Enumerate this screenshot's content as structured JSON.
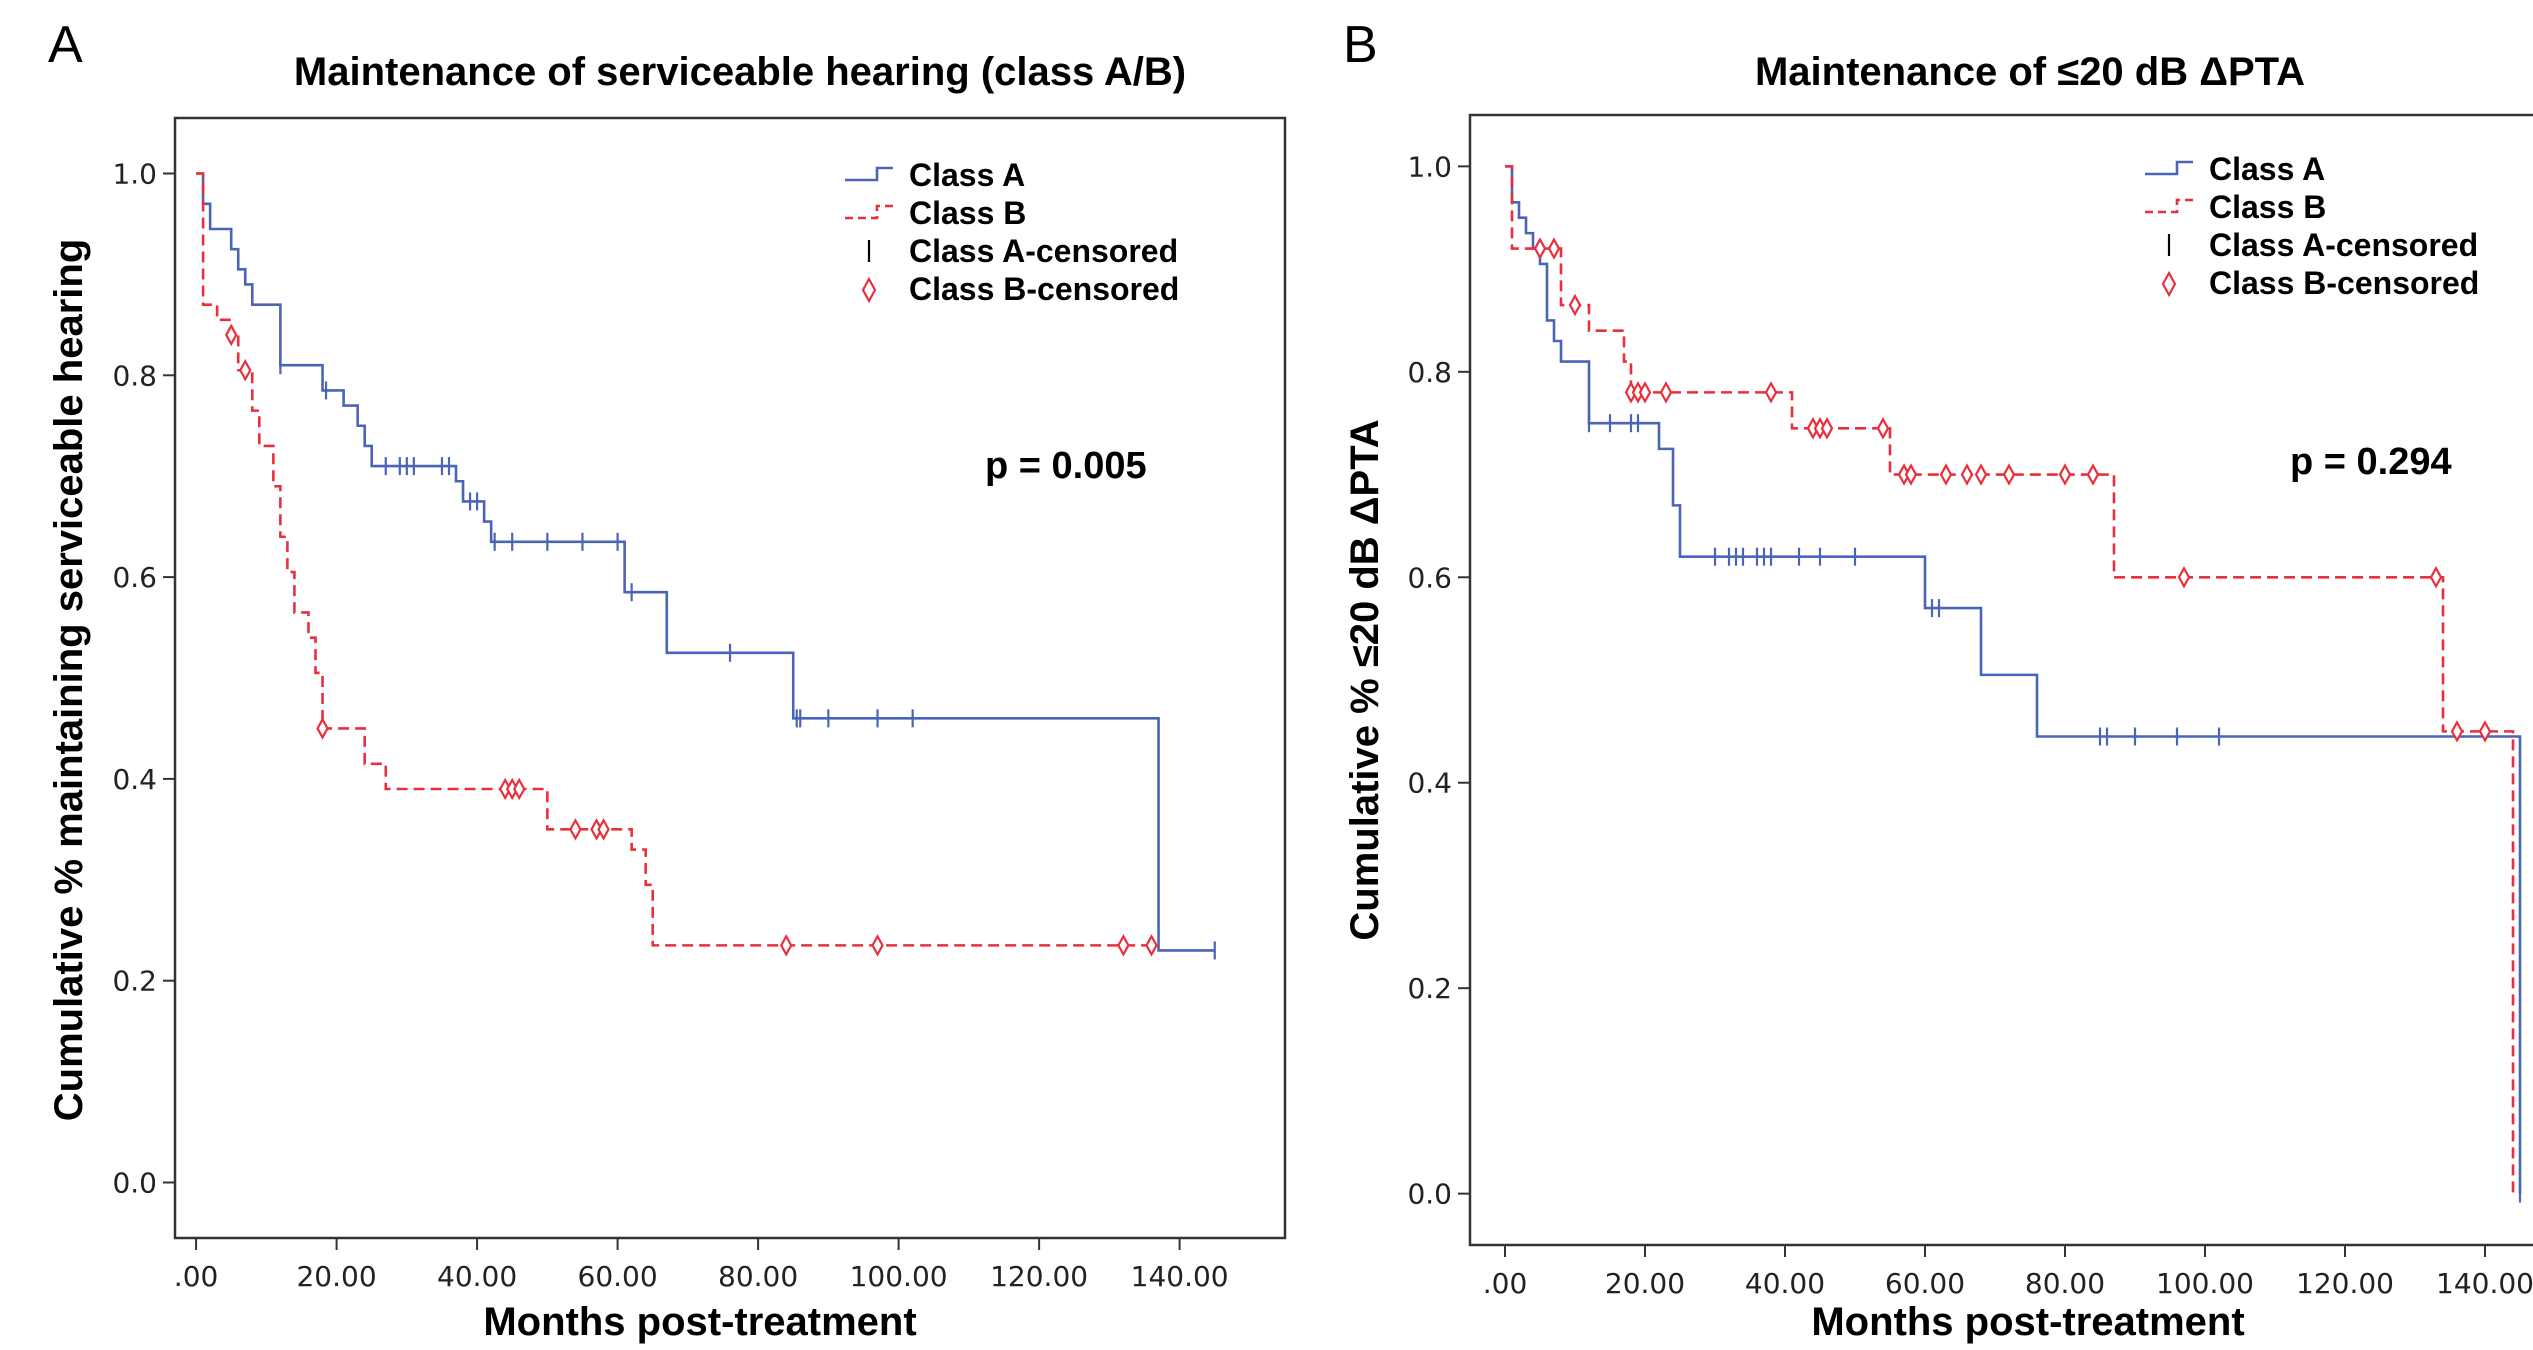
{
  "chart_data": [
    {
      "type": "line",
      "panel": "A",
      "title": "Maintenance of serviceable hearing (class A/B)",
      "xlabel": "Months post-treatment",
      "ylabel": "Cumulative % maintaining serviceable hearing",
      "xlim": [
        -3,
        155
      ],
      "ylim": [
        -0.055,
        1.055
      ],
      "x_ticks": [
        0,
        20,
        40,
        60,
        80,
        100,
        120,
        140
      ],
      "x_tick_labels": [
        ".00",
        "20.00",
        "40.00",
        "60.00",
        "80.00",
        "100.00",
        "120.00",
        "140.00"
      ],
      "y_ticks": [
        0,
        0.2,
        0.4,
        0.6,
        0.8,
        1.0
      ],
      "y_tick_labels": [
        "0.0",
        "0.2",
        "0.4",
        "0.6",
        "0.8",
        "1.0"
      ],
      "annotation": "p = 0.005",
      "legend_position": "top-right",
      "legend": [
        "Class A",
        "Class B",
        "Class A-censored",
        "Class B-censored"
      ],
      "series": [
        {
          "name": "Class A",
          "color": "#4a64b8",
          "dash": "solid",
          "steps": [
            [
              0,
              1.0
            ],
            [
              1,
              0.97
            ],
            [
              2,
              0.945
            ],
            [
              5,
              0.925
            ],
            [
              6,
              0.905
            ],
            [
              7,
              0.89
            ],
            [
              8,
              0.87
            ],
            [
              12,
              0.81
            ],
            [
              18,
              0.785
            ],
            [
              21,
              0.77
            ],
            [
              23,
              0.75
            ],
            [
              24,
              0.73
            ],
            [
              25,
              0.71
            ],
            [
              37,
              0.695
            ],
            [
              38,
              0.675
            ],
            [
              41,
              0.655
            ],
            [
              42,
              0.635
            ],
            [
              61,
              0.585
            ],
            [
              67,
              0.525
            ],
            [
              85,
              0.46
            ],
            [
              137,
              0.46
            ],
            [
              137,
              0.23
            ],
            [
              145,
              0.23
            ]
          ],
          "censored": [
            12,
            18.5,
            27,
            29,
            30,
            31,
            35,
            36,
            39,
            40,
            42.5,
            45,
            50,
            55,
            60,
            62,
            76,
            85.5,
            86,
            90,
            97,
            102,
            145
          ]
        },
        {
          "name": "Class B",
          "color": "#e8303c",
          "dash": "dashed",
          "steps": [
            [
              0,
              1.0
            ],
            [
              1,
              0.87
            ],
            [
              3,
              0.855
            ],
            [
              5,
              0.84
            ],
            [
              6,
              0.805
            ],
            [
              8,
              0.765
            ],
            [
              9,
              0.73
            ],
            [
              11,
              0.69
            ],
            [
              12,
              0.64
            ],
            [
              13,
              0.605
            ],
            [
              14,
              0.565
            ],
            [
              16,
              0.54
            ],
            [
              17,
              0.505
            ],
            [
              18,
              0.45
            ],
            [
              24,
              0.415
            ],
            [
              27,
              0.39
            ],
            [
              48,
              0.39
            ],
            [
              50,
              0.35
            ],
            [
              62,
              0.33
            ],
            [
              64,
              0.295
            ],
            [
              65,
              0.235
            ],
            [
              137,
              0.235
            ]
          ],
          "censored": [
            5,
            7,
            18,
            44,
            45,
            46,
            54,
            57,
            58,
            84,
            97,
            132,
            136
          ]
        }
      ]
    },
    {
      "type": "line",
      "panel": "B",
      "title": "Maintenance of ≤20 dB ΔPTA",
      "xlabel": "Months post-treatment",
      "ylabel": "Cumulative % ≤20 dB ΔPTA",
      "xlim": [
        -5,
        150
      ],
      "ylim": [
        -0.05,
        1.05
      ],
      "x_ticks": [
        0,
        20,
        40,
        60,
        80,
        100,
        120,
        140
      ],
      "x_tick_labels": [
        ".00",
        "20.00",
        "40.00",
        "60.00",
        "80.00",
        "100.00",
        "120.00",
        "140.00"
      ],
      "y_ticks": [
        0,
        0.2,
        0.4,
        0.6,
        0.8,
        1.0
      ],
      "y_tick_labels": [
        "0.0",
        "0.2",
        "0.4",
        "0.6",
        "0.8",
        "1.0"
      ],
      "annotation": "p = 0.294",
      "legend_position": "top-right",
      "legend": [
        "Class A",
        "Class B",
        "Class A-censored",
        "Class B-censored"
      ],
      "series": [
        {
          "name": "Class A",
          "color": "#4a64b8",
          "dash": "solid",
          "steps": [
            [
              0,
              1.0
            ],
            [
              1,
              0.965
            ],
            [
              2,
              0.95
            ],
            [
              3,
              0.935
            ],
            [
              4,
              0.92
            ],
            [
              5,
              0.905
            ],
            [
              6,
              0.85
            ],
            [
              7,
              0.83
            ],
            [
              8,
              0.81
            ],
            [
              12,
              0.75
            ],
            [
              22,
              0.725
            ],
            [
              24,
              0.67
            ],
            [
              25,
              0.62
            ],
            [
              60,
              0.57
            ],
            [
              68,
              0.505
            ],
            [
              76,
              0.445
            ],
            [
              145,
              0.445
            ],
            [
              145,
              0.0
            ]
          ],
          "censored": [
            12,
            15,
            18,
            19,
            30,
            32,
            33,
            34,
            36,
            37,
            38,
            42,
            45,
            50,
            61,
            62,
            85,
            86,
            90,
            96,
            102,
            145
          ]
        },
        {
          "name": "Class B",
          "color": "#e8303c",
          "dash": "dashed",
          "steps": [
            [
              0,
              1.0
            ],
            [
              1,
              0.92
            ],
            [
              8,
              0.865
            ],
            [
              12,
              0.84
            ],
            [
              17,
              0.81
            ],
            [
              18,
              0.78
            ],
            [
              41,
              0.745
            ],
            [
              55,
              0.7
            ],
            [
              87,
              0.6
            ],
            [
              134,
              0.45
            ],
            [
              144,
              0.45
            ],
            [
              144,
              0.0
            ]
          ],
          "censored": [
            5,
            7,
            10,
            18,
            19,
            20,
            23,
            38,
            44,
            45,
            46,
            54,
            57,
            58,
            63,
            66,
            68,
            72,
            80,
            84,
            97,
            133,
            136,
            140
          ]
        }
      ]
    }
  ]
}
